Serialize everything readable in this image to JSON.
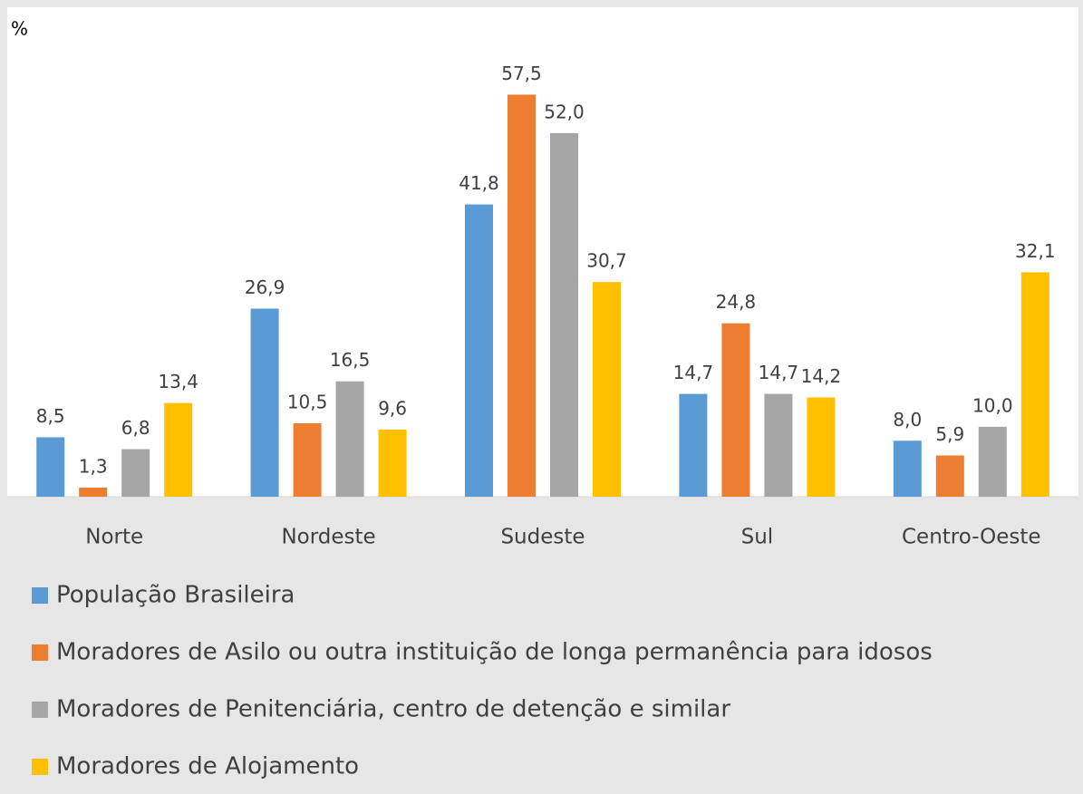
{
  "chart_data": {
    "type": "bar",
    "y_label": "%",
    "categories": [
      "Norte",
      "Nordeste",
      "Sudeste",
      "Sul",
      "Centro-Oeste"
    ],
    "series": [
      {
        "name": "População Brasileira",
        "color": "#5b9bd5",
        "values": [
          8.5,
          26.9,
          41.8,
          14.7,
          8.0
        ],
        "value_labels": [
          "8,5",
          "26,9",
          "41,8",
          "14,7",
          "8,0"
        ]
      },
      {
        "name": "Moradores de  Asilo ou outra instituição de longa permanência para idosos",
        "color": "#ed7d31",
        "values": [
          1.3,
          10.5,
          57.5,
          24.8,
          5.9
        ],
        "value_labels": [
          "1,3",
          "10,5",
          "57,5",
          "24,8",
          "5,9"
        ]
      },
      {
        "name": "Moradores de Penitenciária, centro de detenção e similar",
        "color": "#a5a5a5",
        "values": [
          6.8,
          16.5,
          52.0,
          14.7,
          10.0
        ],
        "value_labels": [
          "6,8",
          "16,5",
          "52,0",
          "14,7",
          "10,0"
        ]
      },
      {
        "name": "Moradores de Alojamento",
        "color": "#ffc000",
        "values": [
          13.4,
          9.6,
          30.7,
          14.2,
          32.1
        ],
        "value_labels": [
          "13,4",
          "9,6",
          "30,7",
          "14,2",
          "32,1"
        ]
      }
    ],
    "ylim": [
      0,
      70
    ],
    "legend": "bottom"
  }
}
